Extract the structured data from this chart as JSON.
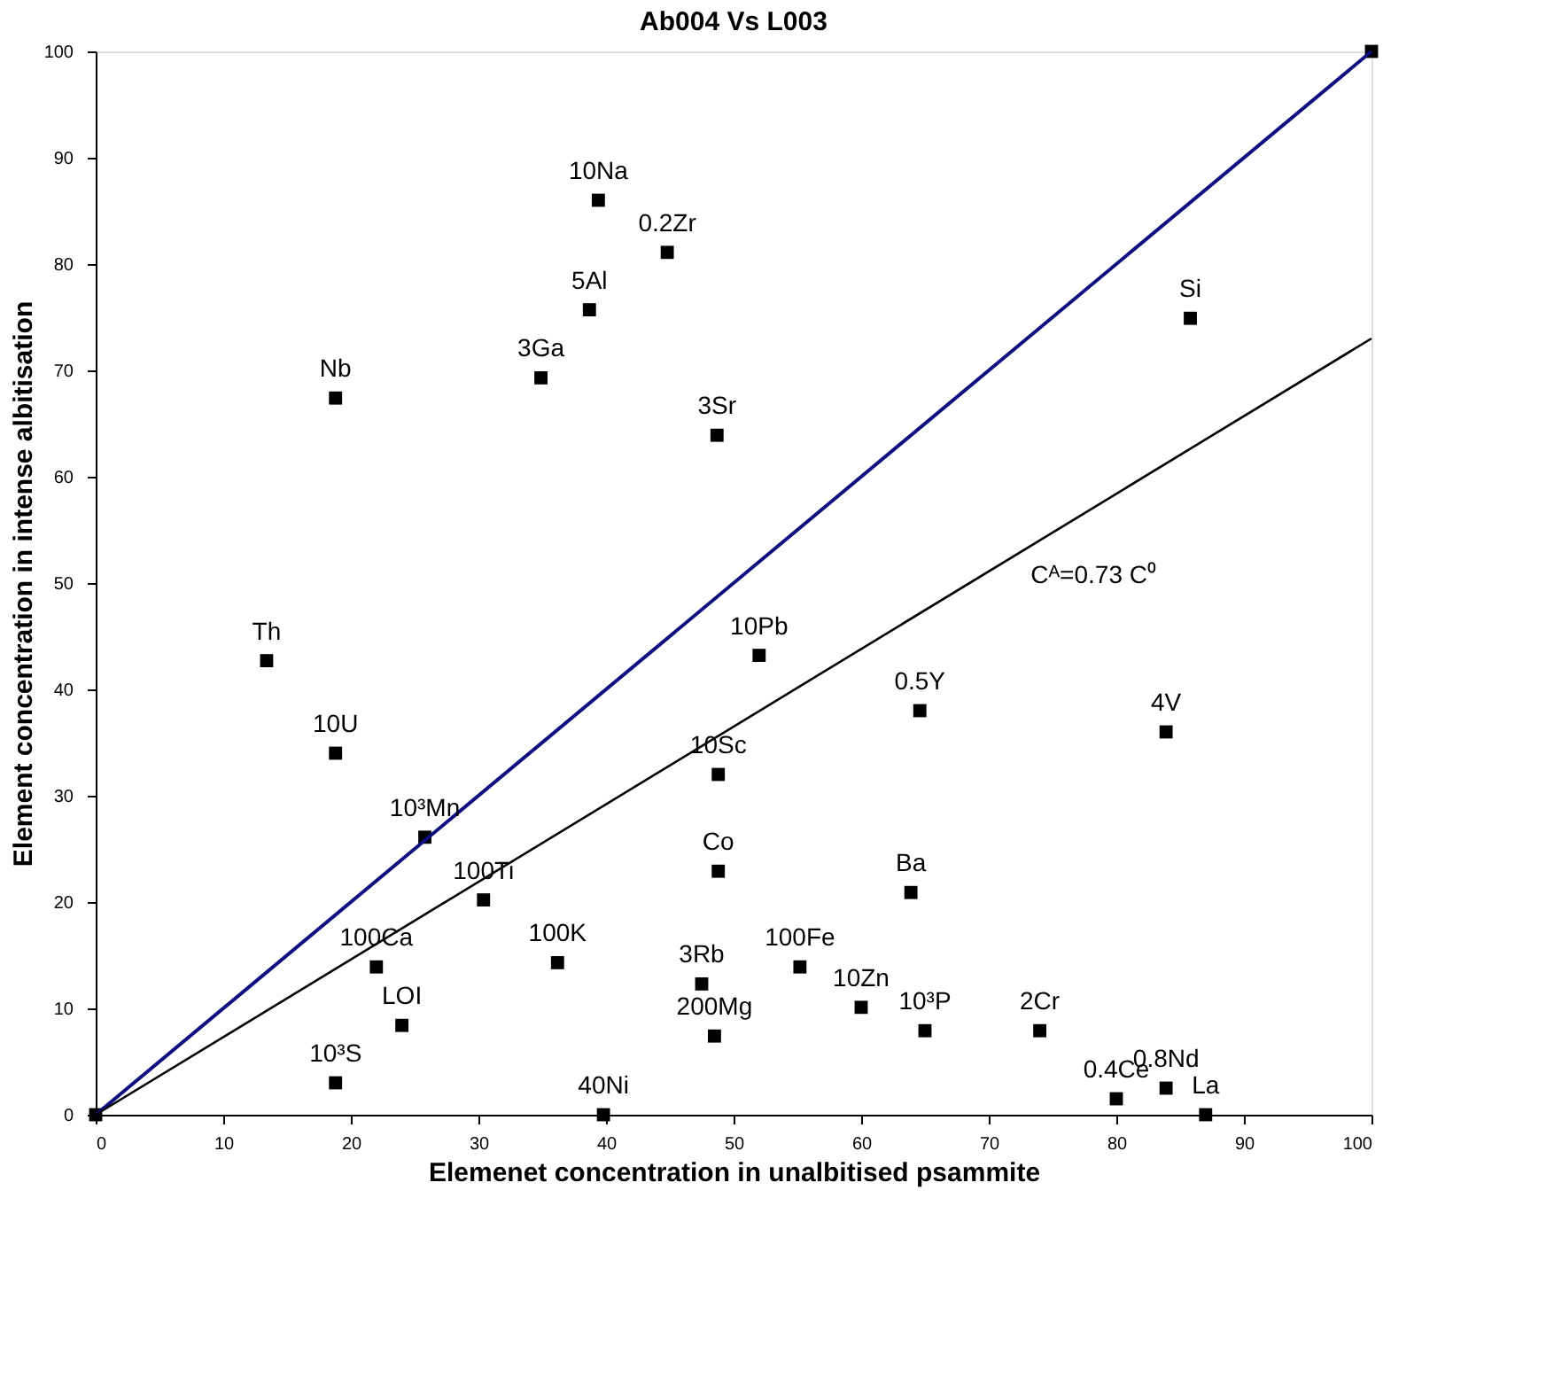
{
  "chart_data": {
    "type": "scatter",
    "title": "Ab004 Vs L003",
    "xlabel": "Elemenet concentration in unalbitised psammite",
    "ylabel": "Element concentration in intense albitisation",
    "xlim": [
      0,
      100
    ],
    "ylim": [
      0,
      100
    ],
    "xticks": [
      0,
      10,
      20,
      30,
      40,
      50,
      60,
      70,
      80,
      90,
      100
    ],
    "yticks": [
      0,
      10,
      20,
      30,
      40,
      50,
      60,
      70,
      80,
      90,
      100
    ],
    "grid": false,
    "series": [
      {
        "marker": "square",
        "color": "#000000",
        "x": [
          0,
          100,
          39.4,
          44.8,
          38.7,
          34.9,
          18.8,
          48.7,
          85.8,
          13.4,
          18.8,
          25.8,
          30.4,
          22.0,
          36.2,
          47.5,
          48.5,
          24.0,
          18.8,
          39.8,
          48.8,
          48.8,
          52.0,
          64.6,
          83.9,
          63.9,
          55.2,
          60.0,
          65.0,
          74.0,
          80.0,
          83.9,
          87.0
        ],
        "values": [
          0,
          100,
          86.0,
          81.1,
          75.7,
          69.3,
          67.4,
          63.9,
          74.9,
          42.7,
          34.0,
          26.1,
          20.2,
          13.9,
          14.3,
          12.3,
          7.4,
          8.4,
          3.0,
          0,
          22.9,
          32.0,
          43.2,
          38.0,
          36.0,
          20.9,
          13.9,
          10.1,
          7.9,
          7.9,
          1.5,
          2.5,
          0
        ]
      },
      {
        "type": "line",
        "color": "#0d0d80",
        "x": [
          0,
          100
        ],
        "values": [
          0,
          100
        ]
      },
      {
        "type": "line",
        "color": "#000000",
        "x": [
          0,
          100
        ],
        "values": [
          0,
          73
        ]
      }
    ],
    "annotations": [
      {
        "text": "10Na",
        "x": 39.4,
        "y": 86.0
      },
      {
        "text": "0.2Zr",
        "x": 44.8,
        "y": 81.1
      },
      {
        "text": "5Al",
        "x": 38.7,
        "y": 75.7
      },
      {
        "text": "3Ga",
        "x": 34.9,
        "y": 69.3
      },
      {
        "text": "Nb",
        "x": 18.8,
        "y": 67.4
      },
      {
        "text": "3Sr",
        "x": 48.7,
        "y": 63.9
      },
      {
        "text": "Si",
        "x": 85.8,
        "y": 74.9
      },
      {
        "text": "Th",
        "x": 13.4,
        "y": 42.7
      },
      {
        "text": "10U",
        "x": 18.8,
        "y": 34.0
      },
      {
        "text": "10³Mn",
        "x": 25.8,
        "y": 26.1
      },
      {
        "text": "100Ti",
        "x": 30.4,
        "y": 20.2
      },
      {
        "text": "100Ca",
        "x": 22.0,
        "y": 13.9
      },
      {
        "text": "100K",
        "x": 36.2,
        "y": 14.3
      },
      {
        "text": "3Rb",
        "x": 47.5,
        "y": 12.3
      },
      {
        "text": "200Mg",
        "x": 48.5,
        "y": 7.4
      },
      {
        "text": "LOI",
        "x": 24.0,
        "y": 8.4
      },
      {
        "text": "10³S",
        "x": 18.8,
        "y": 3.0
      },
      {
        "text": "40Ni",
        "x": 39.8,
        "y": 0
      },
      {
        "text": "Co",
        "x": 48.8,
        "y": 22.9
      },
      {
        "text": "10Sc",
        "x": 48.8,
        "y": 32.0
      },
      {
        "text": "10Pb",
        "x": 52.0,
        "y": 43.2
      },
      {
        "text": "0.5Y",
        "x": 64.6,
        "y": 38.0
      },
      {
        "text": "4V",
        "x": 83.9,
        "y": 36.0
      },
      {
        "text": "Ba",
        "x": 63.9,
        "y": 20.9
      },
      {
        "text": "100Fe",
        "x": 55.2,
        "y": 13.9
      },
      {
        "text": "10Zn",
        "x": 60.0,
        "y": 10.1
      },
      {
        "text": "10³P",
        "x": 65.0,
        "y": 7.9
      },
      {
        "text": "2Cr",
        "x": 74.0,
        "y": 7.9
      },
      {
        "text": "0.4Ce",
        "x": 80.0,
        "y": 1.5
      },
      {
        "text": "0.8Nd",
        "x": 83.9,
        "y": 2.5
      },
      {
        "text": "La",
        "x": 87.0,
        "y": 0
      },
      {
        "text": "Cᴬ=0.73 C⁰",
        "x": 73,
        "y": 53.3
      }
    ]
  }
}
